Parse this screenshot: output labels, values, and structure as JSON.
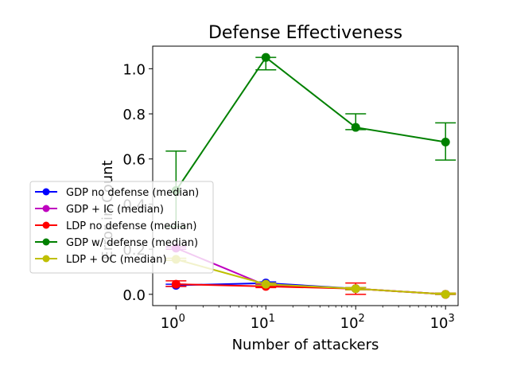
{
  "chart_data": {
    "type": "line",
    "title": "Defense Effectiveness",
    "xlabel": "Number of attackers",
    "ylabel": "Error in Count",
    "xscale": "log",
    "x": [
      1,
      10,
      100,
      1000
    ],
    "xlim": [
      0.55,
      1380
    ],
    "ylim": [
      -0.05,
      1.1
    ],
    "xticks": [
      {
        "value": 1,
        "base": "10",
        "exp": "0"
      },
      {
        "value": 10,
        "base": "10",
        "exp": "1"
      },
      {
        "value": 100,
        "base": "10",
        "exp": "2"
      },
      {
        "value": 1000,
        "base": "10",
        "exp": "3"
      }
    ],
    "yticks": [
      {
        "value": 0.0,
        "label": "0.0"
      },
      {
        "value": 0.2,
        "label": "0.2"
      },
      {
        "value": 0.4,
        "label": "0.4"
      },
      {
        "value": 0.6,
        "label": "0.6"
      },
      {
        "value": 0.8,
        "label": "0.8"
      },
      {
        "value": 1.0,
        "label": "1.0"
      }
    ],
    "legend_position": "center-left",
    "series": [
      {
        "name": "GDP no defense (median)",
        "color": "#0000ff",
        "values": [
          0.04,
          0.05,
          0.025,
          0.0
        ],
        "err_low": [
          0.035,
          0.045,
          0.02,
          0.0
        ],
        "err_high": [
          0.045,
          0.055,
          0.03,
          0.005
        ]
      },
      {
        "name": "GDP + IC (median)",
        "color": "#bf00bf",
        "values": [
          0.205,
          0.04,
          0.025,
          0.0
        ],
        "err_low": [
          0.2,
          0.035,
          0.02,
          0.0
        ],
        "err_high": [
          0.21,
          0.045,
          0.03,
          0.005
        ]
      },
      {
        "name": "LDP no defense (median)",
        "color": "#ff0000",
        "values": [
          0.045,
          0.035,
          0.025,
          0.0
        ],
        "err_low": [
          0.035,
          0.03,
          0.0,
          0.0
        ],
        "err_high": [
          0.06,
          0.04,
          0.05,
          0.005
        ]
      },
      {
        "name": "GDP w/ defense (median)",
        "color": "#008000",
        "values": [
          0.46,
          1.05,
          0.74,
          0.675
        ],
        "err_low": [
          0.3,
          0.995,
          0.73,
          0.595
        ],
        "err_high": [
          0.635,
          1.05,
          0.8,
          0.76
        ]
      },
      {
        "name": "LDP + OC (median)",
        "color": "#bfbf00",
        "values": [
          0.155,
          0.045,
          0.025,
          0.0
        ],
        "err_low": [
          0.15,
          0.04,
          0.02,
          0.0
        ],
        "err_high": [
          0.16,
          0.05,
          0.03,
          0.005
        ]
      }
    ]
  }
}
